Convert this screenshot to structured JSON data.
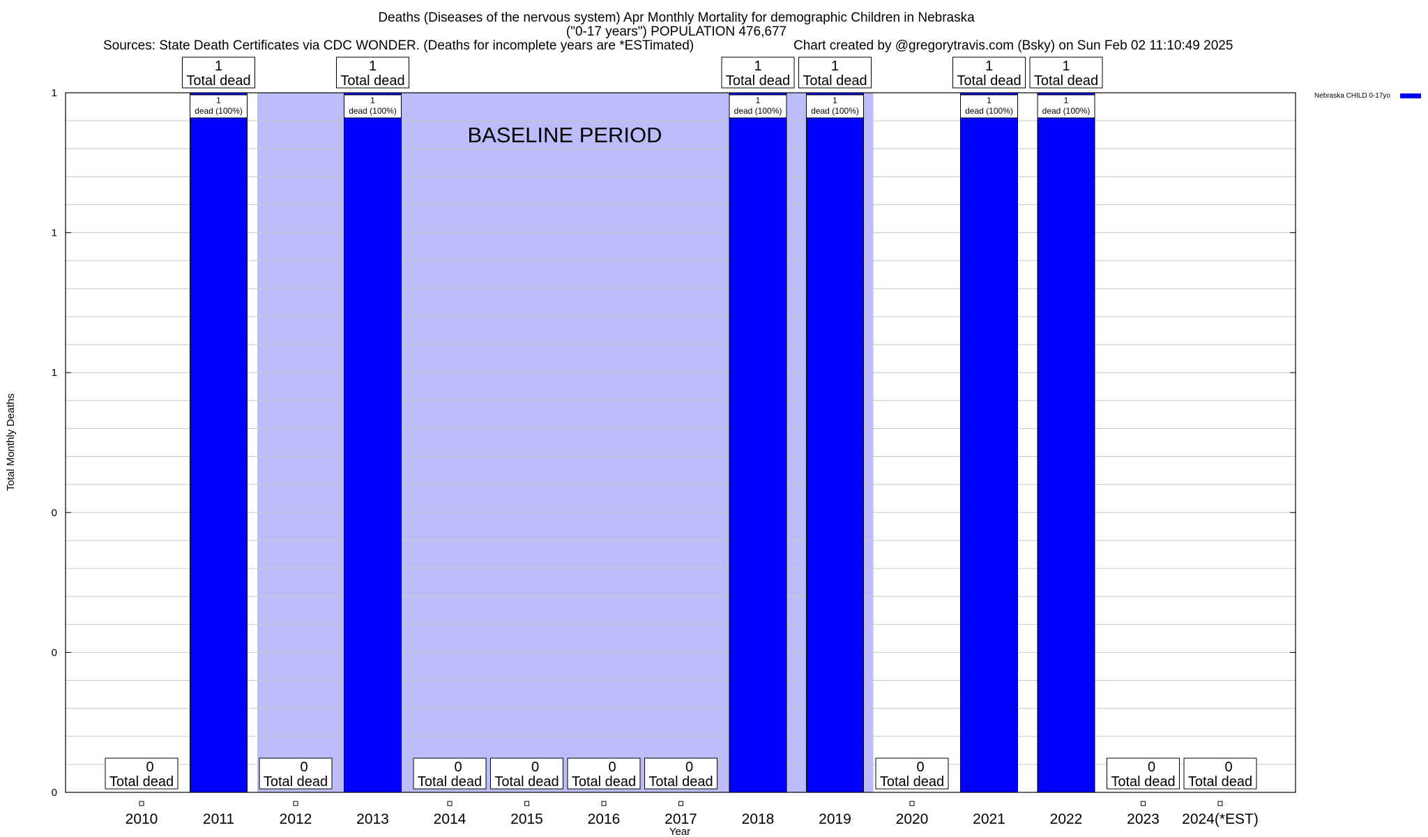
{
  "chart_data": {
    "type": "bar",
    "title": "Deaths (Diseases of the nervous system) Apr Monthly Mortality for demographic Children in Nebraska",
    "subtitle": "(\"0-17 years\") POPULATION 476,677",
    "sources": "Sources: State Death Certificates via CDC WONDER. (Deaths for incomplete years are *ESTimated)",
    "credit": "Chart created by @gregorytravis.com (Bsky) on Sun Feb 02 11:10:49 2025",
    "xlabel": "Year",
    "ylabel": "Total Monthly Deaths",
    "categories": [
      "2010",
      "2011",
      "2012",
      "2013",
      "2014",
      "2015",
      "2016",
      "2017",
      "2018",
      "2019",
      "2020",
      "2021",
      "2022",
      "2023",
      "2024(*EST)"
    ],
    "series": [
      {
        "name": "Nebraska CHILD 0-17yo",
        "color": "#0000ff",
        "values": [
          0,
          1,
          0,
          1,
          0,
          0,
          0,
          0,
          1,
          1,
          0,
          1,
          1,
          0,
          0
        ]
      }
    ],
    "ylim": [
      0,
      1
    ],
    "yticks": [
      0,
      0.2,
      0.4,
      0.6,
      0.8,
      1
    ],
    "ytick_labels": [
      "0",
      "0",
      "0",
      "1",
      "1",
      "1"
    ],
    "total_label": "Total dead",
    "bar_label": "dead (100%)",
    "baseline": {
      "label": "BASELINE PERIOD",
      "start": "2012",
      "end": "2019",
      "color": "#bcbcfa"
    },
    "grid": true,
    "legend_position": "top-right"
  }
}
